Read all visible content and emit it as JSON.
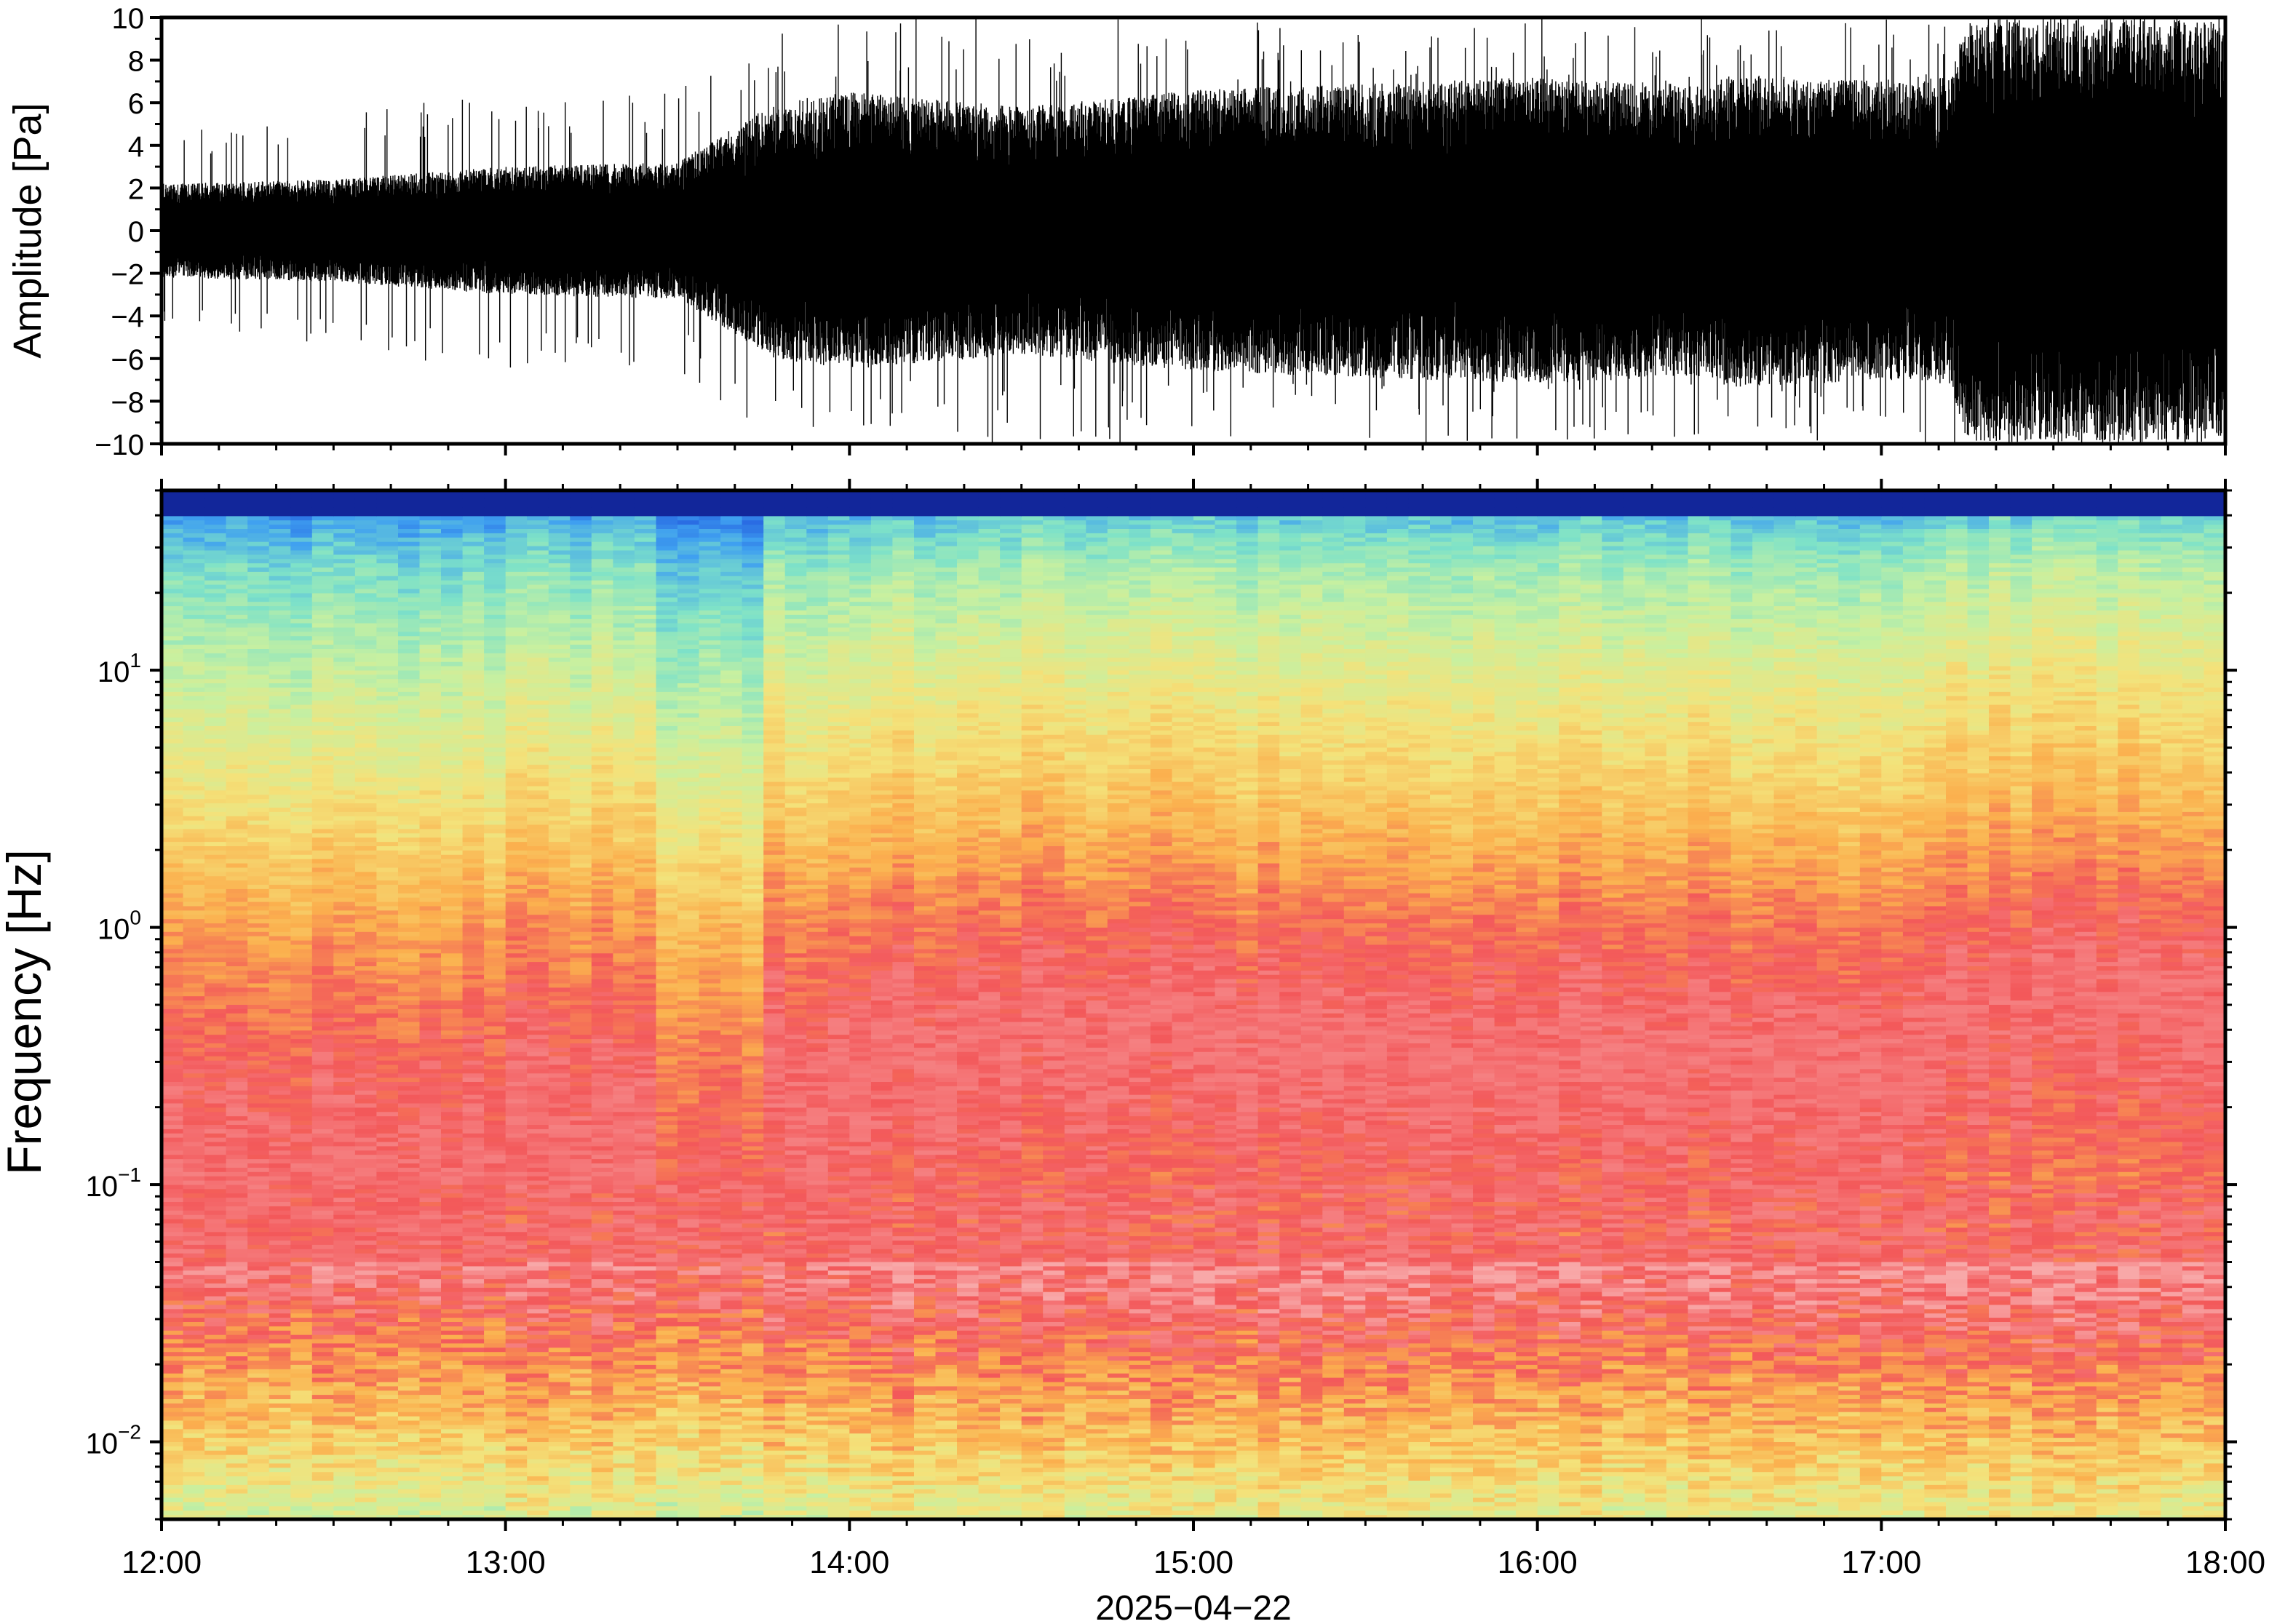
{
  "chart_data": [
    {
      "type": "line",
      "panel": "waveform",
      "ylabel": "Amplitude [Pa]",
      "ylim": [
        -10,
        10
      ],
      "yticks": [
        -10,
        -8,
        -6,
        -4,
        -2,
        0,
        2,
        4,
        6,
        8,
        10
      ],
      "ytick_labels": [
        "−10",
        "−8",
        "−6",
        "−4",
        "−2",
        "0",
        "2",
        "4",
        "6",
        "8",
        "10"
      ],
      "xlim": [
        "12:00",
        "18:00"
      ],
      "grid": false,
      "series": [
        {
          "color": "#000000",
          "envelope_hours": [
            12.0,
            12.5,
            13.0,
            13.5,
            13.78,
            14.0,
            14.5,
            15.0,
            15.5,
            16.0,
            16.5,
            16.55,
            17.0,
            17.2,
            17.25,
            17.5,
            18.0
          ],
          "envelope_amplitude_pa": [
            2.2,
            2.4,
            3.0,
            3.2,
            6.0,
            6.5,
            5.8,
            6.6,
            6.9,
            7.2,
            6.8,
            7.4,
            7.0,
            7.2,
            10.0,
            10.0,
            10.0
          ],
          "spike_amplitude_pa": [
            4.5,
            6.0,
            6.5,
            6.5,
            10.0,
            10.0,
            10.0,
            10.0,
            10.0,
            10.0,
            10.0,
            10.0,
            10.0,
            10.0,
            10.0,
            10.0,
            10.0
          ]
        }
      ]
    },
    {
      "type": "heatmap",
      "panel": "spectrogram",
      "ylabel": "Frequency [Hz]",
      "yscale": "log",
      "ylim": [
        0.005,
        50
      ],
      "ytick_labels": [
        {
          "value": 0.01,
          "base": "10",
          "exp": "−2"
        },
        {
          "value": 0.1,
          "base": "10",
          "exp": "−1"
        },
        {
          "value": 1,
          "base": "10",
          "exp": "0"
        },
        {
          "value": 10,
          "base": "10",
          "exp": "1"
        }
      ],
      "xlim": [
        "12:00",
        "18:00"
      ],
      "xtick_labels": [
        "12:00",
        "13:00",
        "14:00",
        "15:00",
        "16:00",
        "17:00",
        "18:00"
      ],
      "xlabel": "2025−04−22",
      "colormap": [
        "#0a0a6e",
        "#1e50dc",
        "#3fa0f0",
        "#7ee2c8",
        "#c8f0a0",
        "#f4e27a",
        "#fbb04e",
        "#f3585a",
        "#f8a8a8"
      ],
      "grid": false
    }
  ]
}
